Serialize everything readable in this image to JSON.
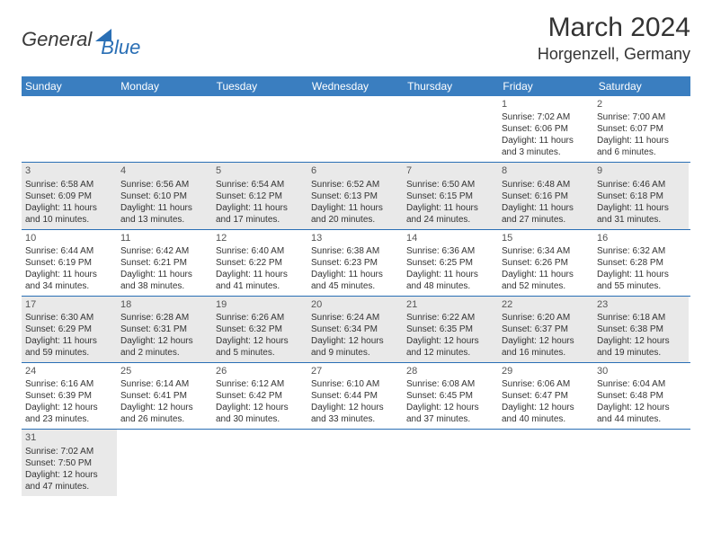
{
  "logo": {
    "text1": "General",
    "text2": "Blue"
  },
  "title": "March 2024",
  "location": "Horgenzell, Germany",
  "colors": {
    "header_bg": "#3a7ec0",
    "header_fg": "#ffffff",
    "row_border": "#2a6fb5",
    "alt_bg": "#e9e9e9",
    "text": "#333333",
    "logo_gray": "#3a3a3a",
    "logo_blue": "#2a6fb5"
  },
  "weekdays": [
    "Sunday",
    "Monday",
    "Tuesday",
    "Wednesday",
    "Thursday",
    "Friday",
    "Saturday"
  ],
  "weeks": [
    [
      null,
      null,
      null,
      null,
      null,
      {
        "d": "1",
        "sunrise": "Sunrise: 7:02 AM",
        "sunset": "Sunset: 6:06 PM",
        "daylight": "Daylight: 11 hours and 3 minutes."
      },
      {
        "d": "2",
        "sunrise": "Sunrise: 7:00 AM",
        "sunset": "Sunset: 6:07 PM",
        "daylight": "Daylight: 11 hours and 6 minutes."
      }
    ],
    [
      {
        "d": "3",
        "sunrise": "Sunrise: 6:58 AM",
        "sunset": "Sunset: 6:09 PM",
        "daylight": "Daylight: 11 hours and 10 minutes."
      },
      {
        "d": "4",
        "sunrise": "Sunrise: 6:56 AM",
        "sunset": "Sunset: 6:10 PM",
        "daylight": "Daylight: 11 hours and 13 minutes."
      },
      {
        "d": "5",
        "sunrise": "Sunrise: 6:54 AM",
        "sunset": "Sunset: 6:12 PM",
        "daylight": "Daylight: 11 hours and 17 minutes."
      },
      {
        "d": "6",
        "sunrise": "Sunrise: 6:52 AM",
        "sunset": "Sunset: 6:13 PM",
        "daylight": "Daylight: 11 hours and 20 minutes."
      },
      {
        "d": "7",
        "sunrise": "Sunrise: 6:50 AM",
        "sunset": "Sunset: 6:15 PM",
        "daylight": "Daylight: 11 hours and 24 minutes."
      },
      {
        "d": "8",
        "sunrise": "Sunrise: 6:48 AM",
        "sunset": "Sunset: 6:16 PM",
        "daylight": "Daylight: 11 hours and 27 minutes."
      },
      {
        "d": "9",
        "sunrise": "Sunrise: 6:46 AM",
        "sunset": "Sunset: 6:18 PM",
        "daylight": "Daylight: 11 hours and 31 minutes."
      }
    ],
    [
      {
        "d": "10",
        "sunrise": "Sunrise: 6:44 AM",
        "sunset": "Sunset: 6:19 PM",
        "daylight": "Daylight: 11 hours and 34 minutes."
      },
      {
        "d": "11",
        "sunrise": "Sunrise: 6:42 AM",
        "sunset": "Sunset: 6:21 PM",
        "daylight": "Daylight: 11 hours and 38 minutes."
      },
      {
        "d": "12",
        "sunrise": "Sunrise: 6:40 AM",
        "sunset": "Sunset: 6:22 PM",
        "daylight": "Daylight: 11 hours and 41 minutes."
      },
      {
        "d": "13",
        "sunrise": "Sunrise: 6:38 AM",
        "sunset": "Sunset: 6:23 PM",
        "daylight": "Daylight: 11 hours and 45 minutes."
      },
      {
        "d": "14",
        "sunrise": "Sunrise: 6:36 AM",
        "sunset": "Sunset: 6:25 PM",
        "daylight": "Daylight: 11 hours and 48 minutes."
      },
      {
        "d": "15",
        "sunrise": "Sunrise: 6:34 AM",
        "sunset": "Sunset: 6:26 PM",
        "daylight": "Daylight: 11 hours and 52 minutes."
      },
      {
        "d": "16",
        "sunrise": "Sunrise: 6:32 AM",
        "sunset": "Sunset: 6:28 PM",
        "daylight": "Daylight: 11 hours and 55 minutes."
      }
    ],
    [
      {
        "d": "17",
        "sunrise": "Sunrise: 6:30 AM",
        "sunset": "Sunset: 6:29 PM",
        "daylight": "Daylight: 11 hours and 59 minutes."
      },
      {
        "d": "18",
        "sunrise": "Sunrise: 6:28 AM",
        "sunset": "Sunset: 6:31 PM",
        "daylight": "Daylight: 12 hours and 2 minutes."
      },
      {
        "d": "19",
        "sunrise": "Sunrise: 6:26 AM",
        "sunset": "Sunset: 6:32 PM",
        "daylight": "Daylight: 12 hours and 5 minutes."
      },
      {
        "d": "20",
        "sunrise": "Sunrise: 6:24 AM",
        "sunset": "Sunset: 6:34 PM",
        "daylight": "Daylight: 12 hours and 9 minutes."
      },
      {
        "d": "21",
        "sunrise": "Sunrise: 6:22 AM",
        "sunset": "Sunset: 6:35 PM",
        "daylight": "Daylight: 12 hours and 12 minutes."
      },
      {
        "d": "22",
        "sunrise": "Sunrise: 6:20 AM",
        "sunset": "Sunset: 6:37 PM",
        "daylight": "Daylight: 12 hours and 16 minutes."
      },
      {
        "d": "23",
        "sunrise": "Sunrise: 6:18 AM",
        "sunset": "Sunset: 6:38 PM",
        "daylight": "Daylight: 12 hours and 19 minutes."
      }
    ],
    [
      {
        "d": "24",
        "sunrise": "Sunrise: 6:16 AM",
        "sunset": "Sunset: 6:39 PM",
        "daylight": "Daylight: 12 hours and 23 minutes."
      },
      {
        "d": "25",
        "sunrise": "Sunrise: 6:14 AM",
        "sunset": "Sunset: 6:41 PM",
        "daylight": "Daylight: 12 hours and 26 minutes."
      },
      {
        "d": "26",
        "sunrise": "Sunrise: 6:12 AM",
        "sunset": "Sunset: 6:42 PM",
        "daylight": "Daylight: 12 hours and 30 minutes."
      },
      {
        "d": "27",
        "sunrise": "Sunrise: 6:10 AM",
        "sunset": "Sunset: 6:44 PM",
        "daylight": "Daylight: 12 hours and 33 minutes."
      },
      {
        "d": "28",
        "sunrise": "Sunrise: 6:08 AM",
        "sunset": "Sunset: 6:45 PM",
        "daylight": "Daylight: 12 hours and 37 minutes."
      },
      {
        "d": "29",
        "sunrise": "Sunrise: 6:06 AM",
        "sunset": "Sunset: 6:47 PM",
        "daylight": "Daylight: 12 hours and 40 minutes."
      },
      {
        "d": "30",
        "sunrise": "Sunrise: 6:04 AM",
        "sunset": "Sunset: 6:48 PM",
        "daylight": "Daylight: 12 hours and 44 minutes."
      }
    ],
    [
      {
        "d": "31",
        "sunrise": "Sunrise: 7:02 AM",
        "sunset": "Sunset: 7:50 PM",
        "daylight": "Daylight: 12 hours and 47 minutes."
      },
      null,
      null,
      null,
      null,
      null,
      null
    ]
  ]
}
